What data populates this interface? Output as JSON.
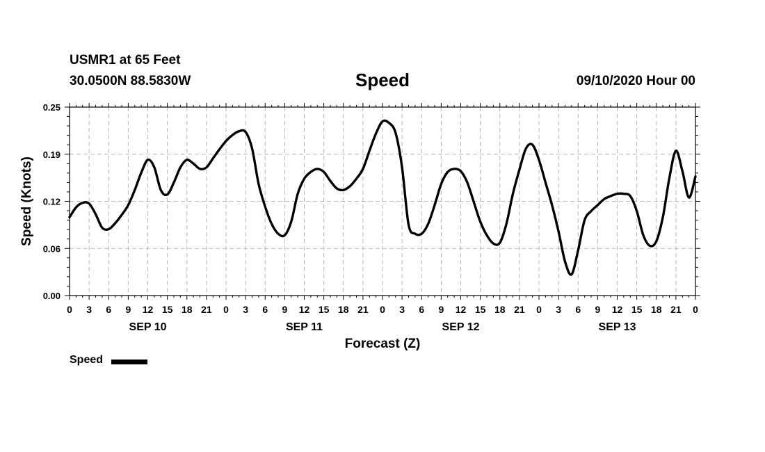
{
  "header": {
    "station": "USMR1 at 65 Feet",
    "coords": "30.0500N 88.5830W",
    "title": "Speed",
    "run": "09/10/2020 Hour 00"
  },
  "legend": {
    "label": "Speed",
    "color": "#000000"
  },
  "chart_data": {
    "type": "line",
    "title": "Speed",
    "xlabel": "Forecast (Z)",
    "ylabel": "Speed (Knots)",
    "ylim": [
      0,
      0.25
    ],
    "xlim": [
      0,
      96
    ],
    "yticks": [
      "0.00",
      "0.06",
      "0.12",
      "0.19",
      "0.25"
    ],
    "x_tick_labels": [
      "0",
      "3",
      "6",
      "9",
      "12",
      "15",
      "18",
      "21",
      "0",
      "3",
      "6",
      "9",
      "12",
      "15",
      "18",
      "21",
      "0",
      "3",
      "6",
      "9",
      "12",
      "15",
      "18",
      "21",
      "0",
      "3",
      "6",
      "9",
      "12",
      "15",
      "18",
      "21",
      "0"
    ],
    "day_labels": [
      {
        "label": "SEP 10",
        "at": 12
      },
      {
        "label": "SEP 11",
        "at": 36
      },
      {
        "label": "SEP 12",
        "at": 60
      },
      {
        "label": "SEP 13",
        "at": 84
      }
    ],
    "grid": true,
    "series": [
      {
        "name": "Speed",
        "color": "#000000",
        "x": [
          0,
          1,
          2,
          3,
          4,
          5,
          6,
          7,
          8,
          9,
          10,
          11,
          12,
          13,
          14,
          15,
          16,
          17,
          18,
          19,
          20,
          21,
          22,
          23,
          24,
          25,
          26,
          27,
          28,
          29,
          30,
          31,
          32,
          33,
          34,
          35,
          36,
          37,
          38,
          39,
          40,
          41,
          42,
          43,
          44,
          45,
          46,
          47,
          48,
          49,
          50,
          51,
          52,
          53,
          54,
          55,
          56,
          57,
          58,
          59,
          60,
          61,
          62,
          63,
          64,
          65,
          66,
          67,
          68,
          69,
          70,
          71,
          72,
          73,
          74,
          75,
          76,
          77,
          78,
          79,
          80,
          81,
          82,
          83,
          84,
          85,
          86,
          87,
          88,
          89,
          90,
          91,
          92,
          93,
          94,
          95,
          96
        ],
        "values": [
          0.104,
          0.117,
          0.123,
          0.122,
          0.108,
          0.09,
          0.088,
          0.096,
          0.107,
          0.12,
          0.14,
          0.163,
          0.18,
          0.17,
          0.14,
          0.134,
          0.15,
          0.17,
          0.18,
          0.175,
          0.168,
          0.17,
          0.182,
          0.194,
          0.205,
          0.213,
          0.218,
          0.217,
          0.195,
          0.148,
          0.118,
          0.095,
          0.082,
          0.08,
          0.098,
          0.135,
          0.155,
          0.164,
          0.168,
          0.164,
          0.152,
          0.142,
          0.14,
          0.145,
          0.155,
          0.168,
          0.192,
          0.215,
          0.231,
          0.229,
          0.216,
          0.17,
          0.094,
          0.082,
          0.082,
          0.095,
          0.12,
          0.148,
          0.164,
          0.168,
          0.165,
          0.15,
          0.124,
          0.098,
          0.08,
          0.069,
          0.07,
          0.095,
          0.135,
          0.167,
          0.195,
          0.2,
          0.18,
          0.15,
          0.12,
          0.085,
          0.045,
          0.028,
          0.06,
          0.1,
          0.112,
          0.12,
          0.128,
          0.132,
          0.135,
          0.135,
          0.132,
          0.112,
          0.08,
          0.066,
          0.072,
          0.104,
          0.156,
          0.192,
          0.165,
          0.13,
          0.158
        ]
      }
    ]
  }
}
